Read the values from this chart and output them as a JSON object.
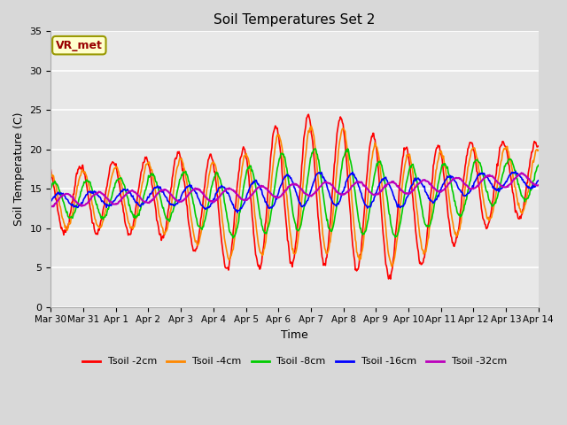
{
  "title": "Soil Temperatures Set 2",
  "xlabel": "Time",
  "ylabel": "Soil Temperature (C)",
  "annotation_text": "VR_met",
  "annotation_bg": "#ffffcc",
  "annotation_border": "#999900",
  "annotation_textcolor": "#990000",
  "ylim": [
    0,
    35
  ],
  "yticks": [
    0,
    5,
    10,
    15,
    20,
    25,
    30,
    35
  ],
  "fig_bg": "#d8d8d8",
  "plot_bg": "#e8e8e8",
  "grid_color": "#ffffff",
  "series": [
    {
      "label": "Tsoil -2cm",
      "color": "#ff0000",
      "lw": 1.2
    },
    {
      "label": "Tsoil -4cm",
      "color": "#ff8800",
      "lw": 1.2
    },
    {
      "label": "Tsoil -8cm",
      "color": "#00cc00",
      "lw": 1.2
    },
    {
      "label": "Tsoil -16cm",
      "color": "#0000ff",
      "lw": 1.2
    },
    {
      "label": "Tsoil -32cm",
      "color": "#bb00bb",
      "lw": 1.5
    }
  ],
  "num_days": 15,
  "points_per_day": 48,
  "xtick_labels": [
    "Mar 30",
    "Mar 31",
    "Apr 1",
    "Apr 2",
    "Apr 3",
    "Apr 4",
    "Apr 5",
    "Apr 6",
    "Apr 7",
    "Apr 8",
    "Apr 9",
    "Apr 10",
    "Apr 11",
    "Apr 12",
    "Apr 13",
    "Apr 14"
  ],
  "xtick_positions": [
    0,
    1,
    2,
    3,
    4,
    5,
    6,
    7,
    8,
    9,
    10,
    11,
    12,
    13,
    14,
    15
  ]
}
